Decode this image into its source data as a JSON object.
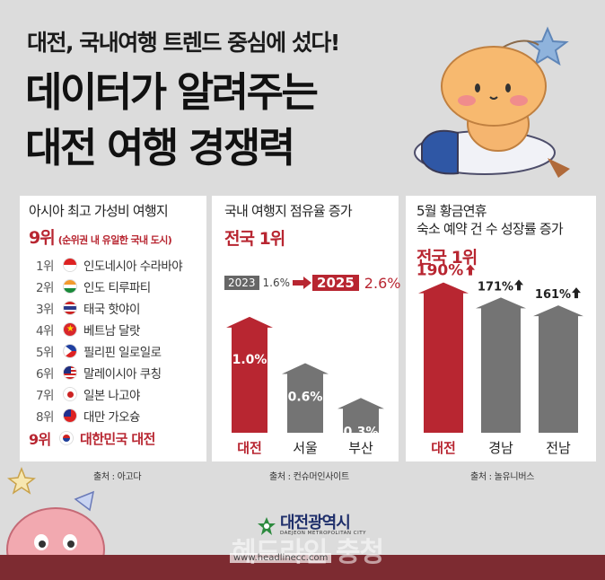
{
  "header": {
    "subtitle": "대전, 국내여행 트렌드 중심에 섰다!",
    "title_line1": "데이터가 알려주는",
    "title_line2": "대전 여행 경쟁력"
  },
  "panel1": {
    "title": "아시아 최고 가성비 여행지",
    "rank_big": "9위",
    "rank_note": "(순위권 내 유일한 국내 도시)",
    "rows": [
      {
        "rank": "1위",
        "name": "인도네시아 수라바야",
        "flag": "indonesia"
      },
      {
        "rank": "2위",
        "name": "인도 티루파티",
        "flag": "india"
      },
      {
        "rank": "3위",
        "name": "태국 핫야이",
        "flag": "thailand"
      },
      {
        "rank": "4위",
        "name": "베트남 달랏",
        "flag": "vietnam"
      },
      {
        "rank": "5위",
        "name": "필리핀 일로일로",
        "flag": "philippines"
      },
      {
        "rank": "6위",
        "name": "말레이시아 쿠칭",
        "flag": "malaysia"
      },
      {
        "rank": "7위",
        "name": "일본 나고야",
        "flag": "japan"
      },
      {
        "rank": "8위",
        "name": "대만 가오슝",
        "flag": "taiwan"
      },
      {
        "rank": "9위",
        "name": "대한민국 대전",
        "flag": "korea"
      }
    ],
    "source": "출처 : 아고다"
  },
  "panel2": {
    "title": "국내 여행지 점유율 증가",
    "headline": "전국 1위",
    "from_year": "2023",
    "from_value": "1.6%",
    "to_year": "2025",
    "to_value": "2.6%",
    "source": "출처 : 컨슈머인사이트"
  },
  "panel3": {
    "title_line1": "5월 황금연휴",
    "title_line2": "숙소 예약 건 수 성장률 증가",
    "headline": "전국 1위",
    "source": "출처 : 놀유니버스"
  },
  "chart_data": [
    {
      "type": "bar",
      "categories": [
        "대전",
        "서울",
        "부산"
      ],
      "values": [
        1.0,
        0.6,
        0.3
      ],
      "value_labels": [
        "1.0%",
        "0.6%",
        "0.3%"
      ],
      "ylim": [
        0,
        1.2
      ],
      "colors": [
        "#b82631",
        "#747474",
        "#747474"
      ]
    },
    {
      "type": "bar",
      "categories": [
        "대전",
        "경남",
        "전남"
      ],
      "values": [
        190,
        171,
        161
      ],
      "value_labels": [
        "190%",
        "171%",
        "161%"
      ],
      "ylim": [
        0,
        210
      ],
      "colors": [
        "#b82631",
        "#747474",
        "#747474"
      ]
    }
  ],
  "footer": {
    "logo_name": "대전광역시",
    "logo_sub": "DAEJEON METROPOLITAN CITY",
    "watermark": "헤드라인 충청",
    "watermark_url": "www.headlinecc.com"
  },
  "colors": {
    "accent_red": "#b82631",
    "bar_gray": "#747474",
    "background": "#dcdcdc",
    "footer_band": "#7d2b31"
  }
}
